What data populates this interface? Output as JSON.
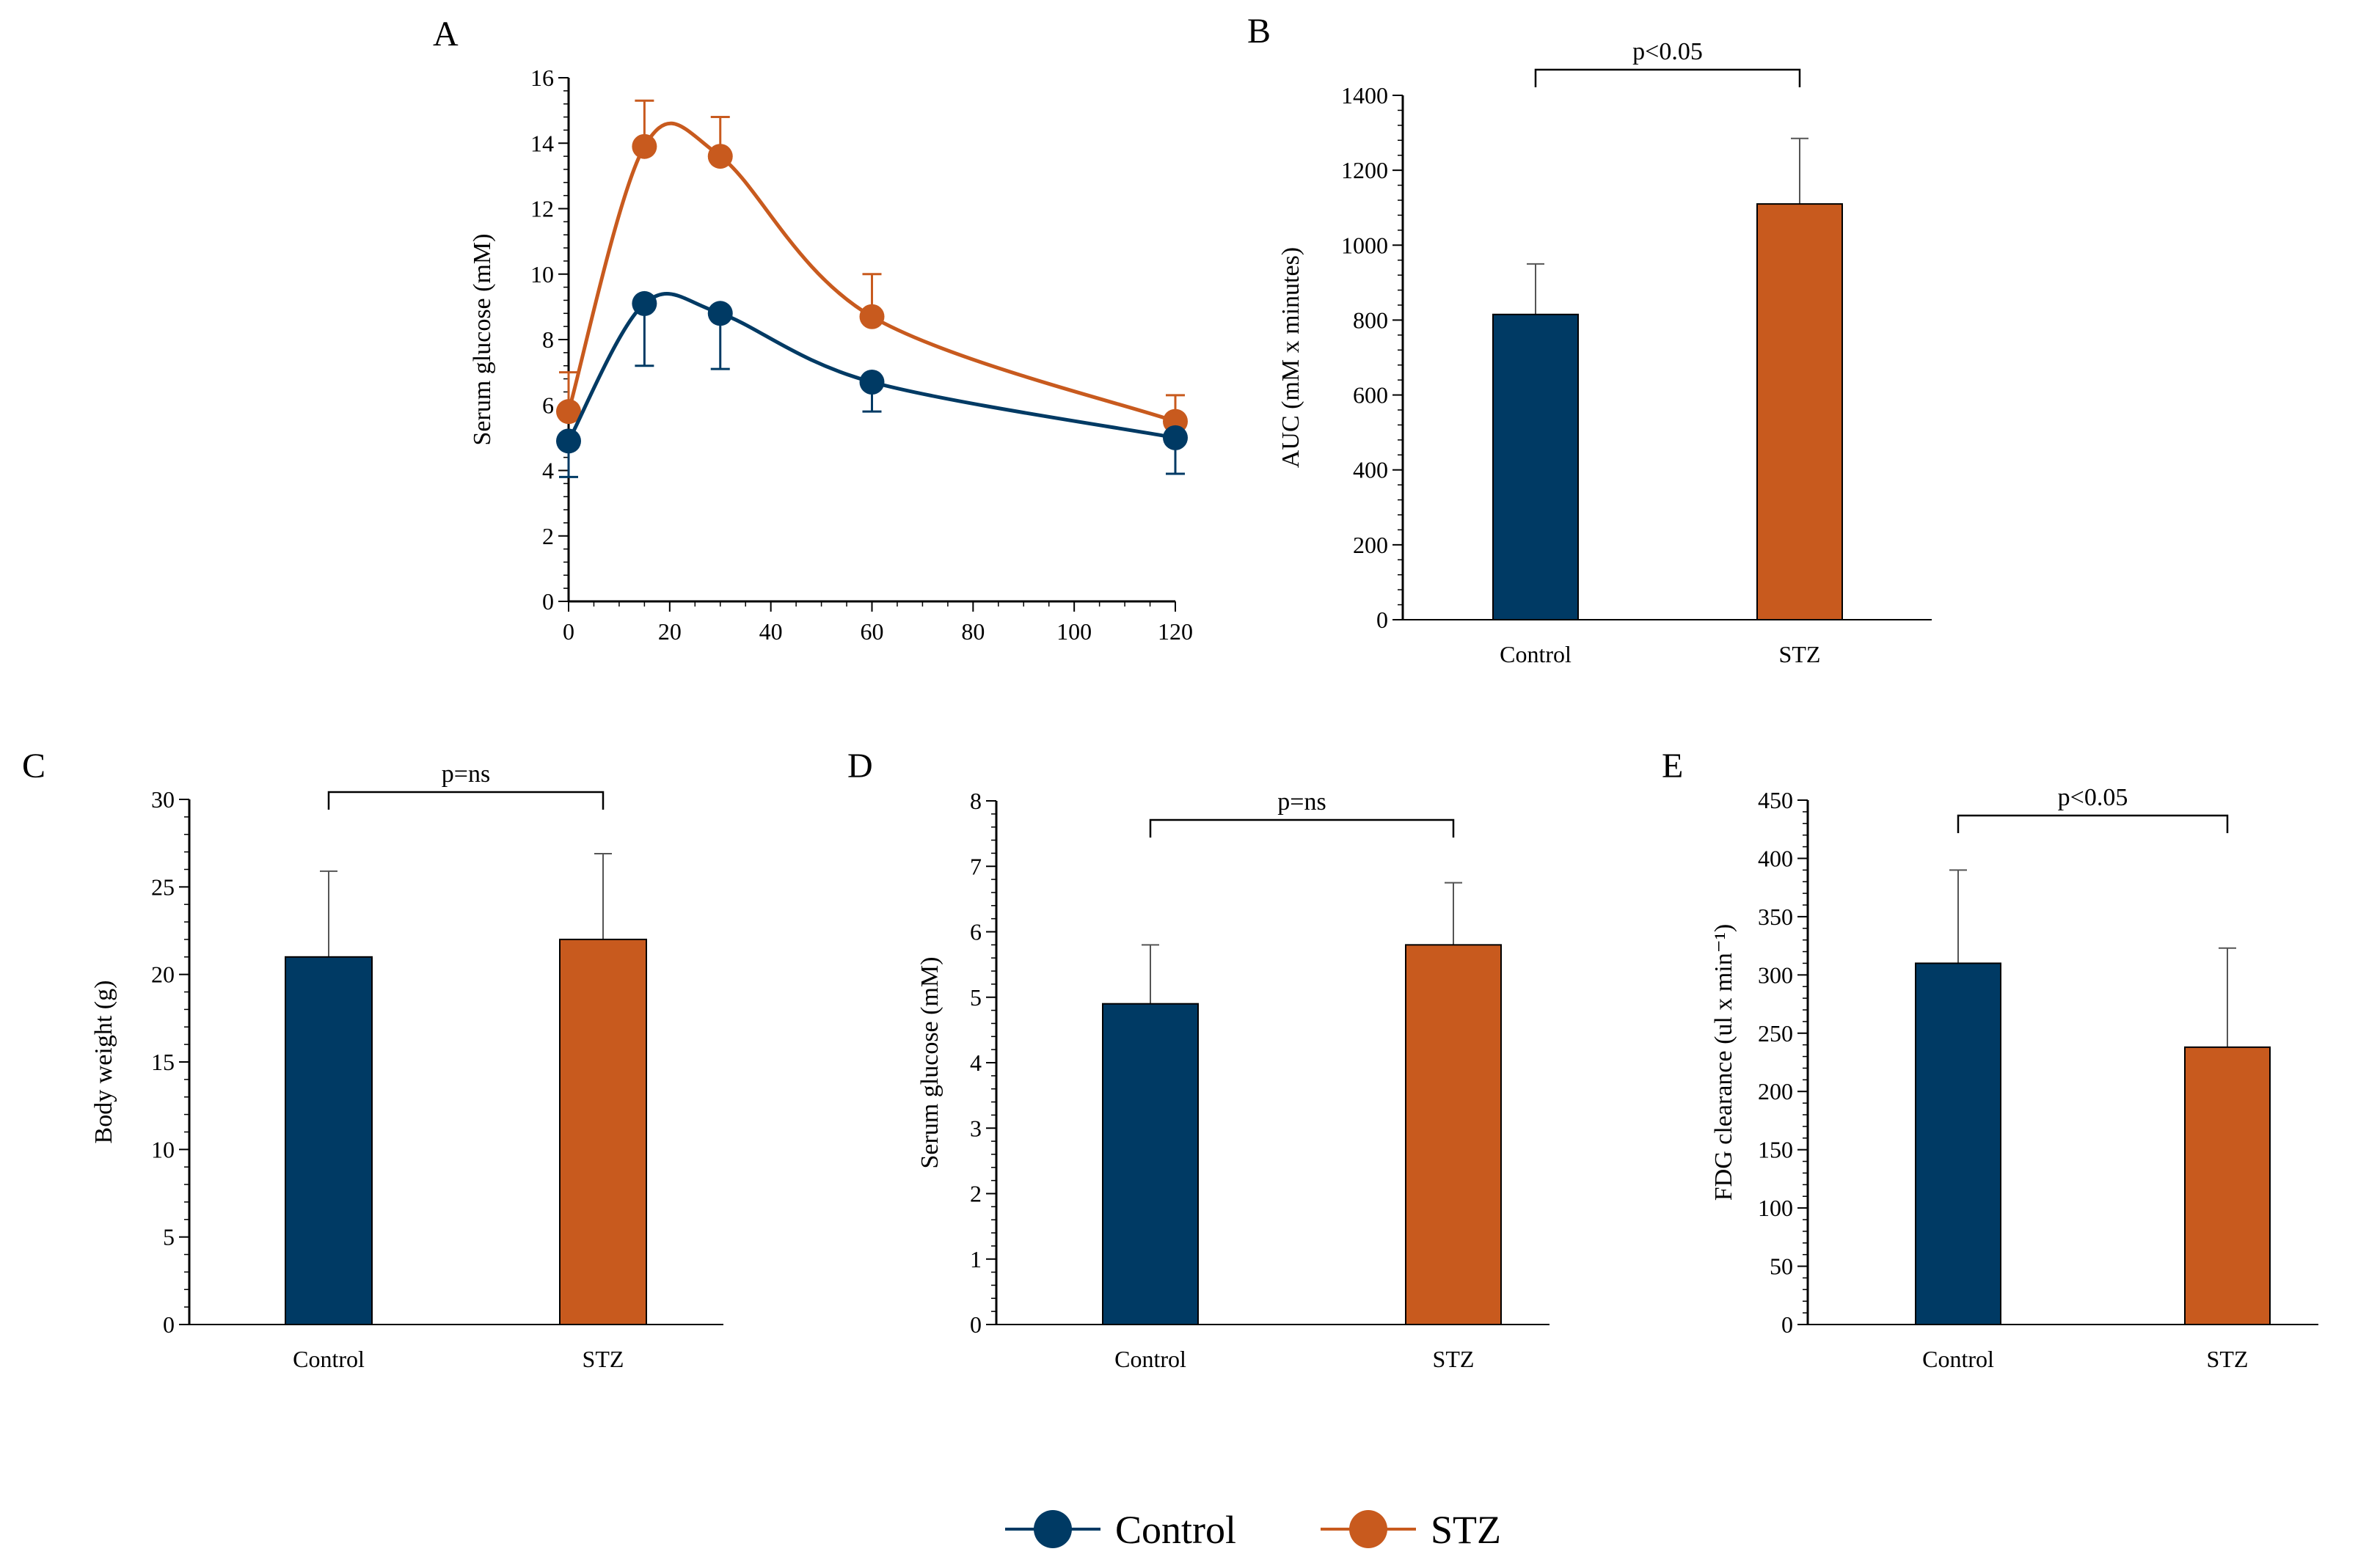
{
  "colors": {
    "control": "#003a64",
    "stz": "#c85a1e",
    "axis": "#000000",
    "error": "#555555"
  },
  "legend": {
    "items": [
      {
        "label": "Control",
        "color_key": "control"
      },
      {
        "label": "STZ",
        "color_key": "stz"
      }
    ]
  },
  "chart_data": [
    {
      "id": "A",
      "panel_label": "A",
      "type": "line",
      "ylabel": "Serum  glucose (mM)",
      "xlabel": "",
      "x": [
        0,
        15,
        30,
        60,
        120
      ],
      "xlim": [
        0,
        120
      ],
      "xticks": [
        0,
        20,
        40,
        60,
        80,
        100,
        120
      ],
      "ylim": [
        0,
        16
      ],
      "yticks": [
        0,
        2,
        4,
        6,
        8,
        10,
        12,
        14,
        16
      ],
      "series": [
        {
          "name": "Control",
          "color_key": "control",
          "values": [
            4.9,
            9.1,
            8.8,
            6.7,
            5.0
          ],
          "errors": [
            1.1,
            1.9,
            1.7,
            0.9,
            1.1
          ],
          "error_direction": "down"
        },
        {
          "name": "STZ",
          "color_key": "stz",
          "values": [
            5.8,
            13.9,
            13.6,
            8.7,
            5.5
          ],
          "errors": [
            1.2,
            1.4,
            1.2,
            1.3,
            0.8
          ],
          "error_direction": "up"
        }
      ]
    },
    {
      "id": "B",
      "panel_label": "B",
      "type": "bar",
      "ylabel": "AUC (mM x minutes)",
      "categories": [
        "Control",
        "STZ"
      ],
      "values": [
        815,
        1110
      ],
      "errors": [
        135,
        175
      ],
      "ylim": [
        0,
        1400
      ],
      "yticks": [
        0,
        200,
        400,
        600,
        800,
        1000,
        1200,
        1400
      ],
      "significance": "p<0.05"
    },
    {
      "id": "C",
      "panel_label": "C",
      "type": "bar",
      "ylabel": "Body weight (g)",
      "categories": [
        "Control",
        "STZ"
      ],
      "values": [
        21.0,
        22.0
      ],
      "errors": [
        4.9,
        4.9
      ],
      "ylim": [
        0,
        30
      ],
      "yticks": [
        0,
        5,
        10,
        15,
        20,
        25,
        30
      ],
      "significance": "p=ns"
    },
    {
      "id": "D",
      "panel_label": "D",
      "type": "bar",
      "ylabel": "Serum glucose  (mM)",
      "categories": [
        "Control",
        "STZ"
      ],
      "values": [
        4.9,
        5.8
      ],
      "errors": [
        0.9,
        0.95
      ],
      "ylim": [
        0,
        8
      ],
      "yticks": [
        0,
        1,
        2,
        3,
        4,
        5,
        6,
        7,
        8
      ],
      "significance": "p=ns"
    },
    {
      "id": "E",
      "panel_label": "E",
      "type": "bar",
      "ylabel": "FDG clearance  (ul x min⁻¹)",
      "categories": [
        "Control",
        "STZ"
      ],
      "values": [
        310,
        238
      ],
      "errors": [
        80,
        85
      ],
      "ylim": [
        0,
        450
      ],
      "yticks": [
        0,
        50,
        100,
        150,
        200,
        250,
        300,
        350,
        400,
        450
      ],
      "significance": "p<0.05"
    }
  ]
}
